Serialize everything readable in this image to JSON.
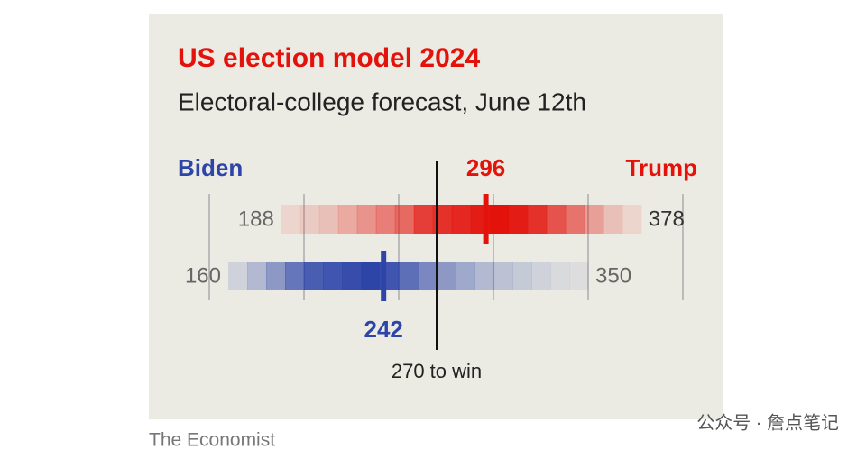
{
  "chart_data": {
    "type": "range-heat",
    "title": "US election model 2024",
    "subtitle": "Electoral-college forecast, June 12th",
    "source": "The Economist",
    "watermark": "公众号 · 詹点笔记",
    "xlim": [
      130,
      410
    ],
    "xticks": [
      150,
      200,
      250,
      300,
      350,
      400
    ],
    "grid": true,
    "threshold": {
      "value": 270,
      "label": "270 to win"
    },
    "series": [
      {
        "name": "Trump",
        "color": "#e3120b",
        "low": 188,
        "median": 296,
        "high": 378,
        "density": [
          0.1,
          0.15,
          0.2,
          0.3,
          0.4,
          0.5,
          0.6,
          0.8,
          0.85,
          0.9,
          0.95,
          1,
          0.95,
          0.85,
          0.7,
          0.55,
          0.35,
          0.2,
          0.1
        ]
      },
      {
        "name": "Biden",
        "color": "#2e45a8",
        "low": 160,
        "median": 242,
        "high": 350,
        "density": [
          0.15,
          0.3,
          0.5,
          0.7,
          0.85,
          0.9,
          0.95,
          1,
          0.9,
          0.75,
          0.6,
          0.5,
          0.4,
          0.3,
          0.25,
          0.2,
          0.15,
          0.1,
          0.08
        ]
      }
    ]
  }
}
